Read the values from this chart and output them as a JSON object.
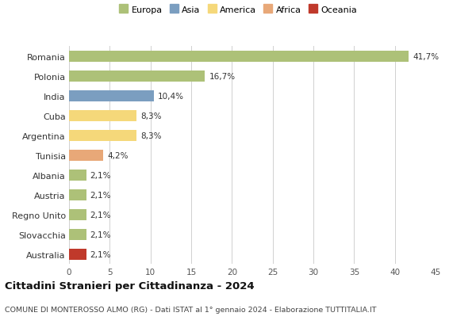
{
  "countries": [
    "Romania",
    "Polonia",
    "India",
    "Cuba",
    "Argentina",
    "Tunisia",
    "Albania",
    "Austria",
    "Regno Unito",
    "Slovacchia",
    "Australia"
  ],
  "values": [
    41.7,
    16.7,
    10.4,
    8.3,
    8.3,
    4.2,
    2.1,
    2.1,
    2.1,
    2.1,
    2.1
  ],
  "labels": [
    "41,7%",
    "16,7%",
    "10,4%",
    "8,3%",
    "8,3%",
    "4,2%",
    "2,1%",
    "2,1%",
    "2,1%",
    "2,1%",
    "2,1%"
  ],
  "colors": [
    "#adc178",
    "#adc178",
    "#7b9ec0",
    "#f5d87a",
    "#f5d87a",
    "#e8a878",
    "#adc178",
    "#adc178",
    "#adc178",
    "#adc178",
    "#c0392b"
  ],
  "legend_labels": [
    "Europa",
    "Asia",
    "America",
    "Africa",
    "Oceania"
  ],
  "legend_colors": [
    "#adc178",
    "#7b9ec0",
    "#f5d87a",
    "#e8a878",
    "#c0392b"
  ],
  "title": "Cittadini Stranieri per Cittadinanza - 2024",
  "subtitle": "COMUNE DI MONTEROSSO ALMO (RG) - Dati ISTAT al 1° gennaio 2024 - Elaborazione TUTTITALIA.IT",
  "xlim": [
    0,
    45
  ],
  "xticks": [
    0,
    5,
    10,
    15,
    20,
    25,
    30,
    35,
    40,
    45
  ],
  "background_color": "#ffffff",
  "grid_color": "#d0d0d0",
  "bar_height": 0.55
}
